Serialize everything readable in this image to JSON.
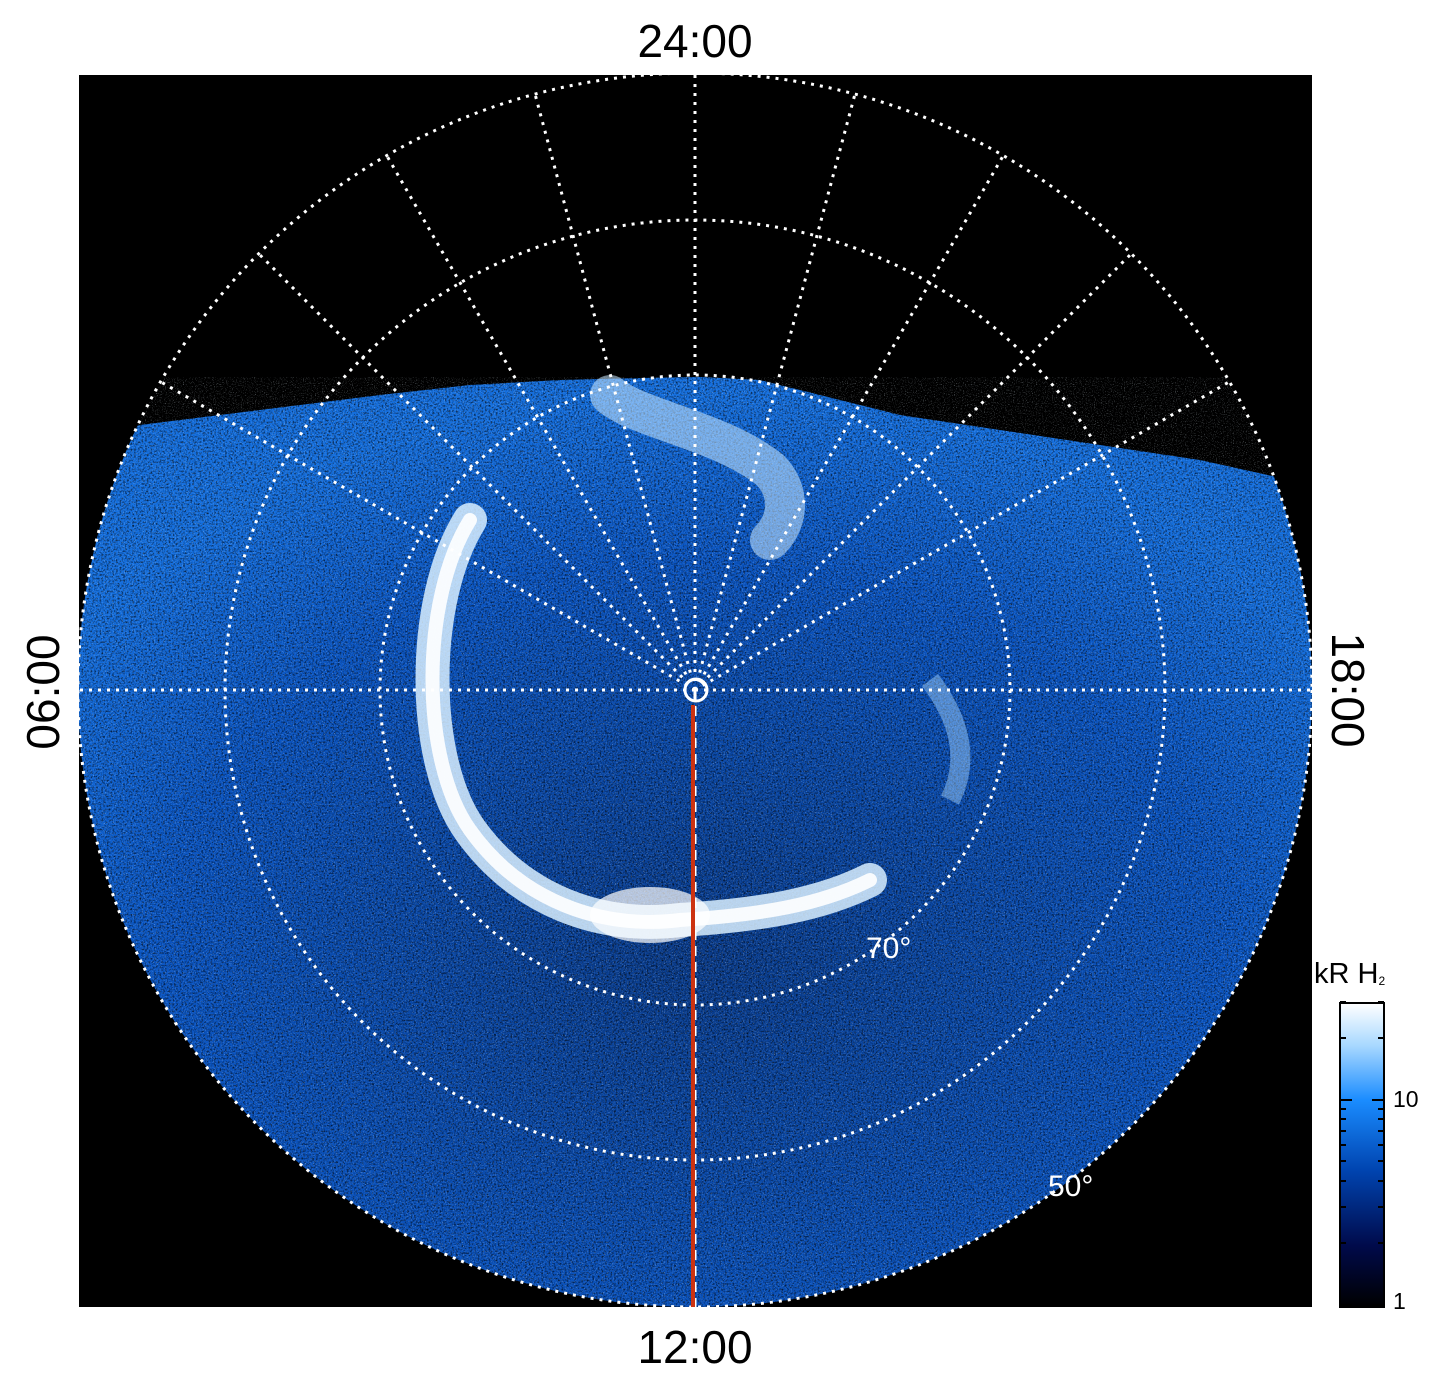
{
  "figure": {
    "local_time_labels": {
      "top": "24:00",
      "bottom": "12:00",
      "left": "06:00",
      "right": "18:00"
    },
    "latitude_labels": [
      "70°",
      "50°"
    ],
    "colorbar": {
      "title": "kR H",
      "title_subscript": "2",
      "tick_labels": [
        "10",
        "1"
      ],
      "scale": "log",
      "range_kR": [
        1,
        30
      ],
      "colors": [
        "#000000",
        "#000a4a",
        "#0044b0",
        "#1a8cff",
        "#a8d8ff",
        "#ffffff"
      ]
    },
    "background": "#000000",
    "grid_color": "#ffffff",
    "marker_line_color": "#cc3311"
  }
}
